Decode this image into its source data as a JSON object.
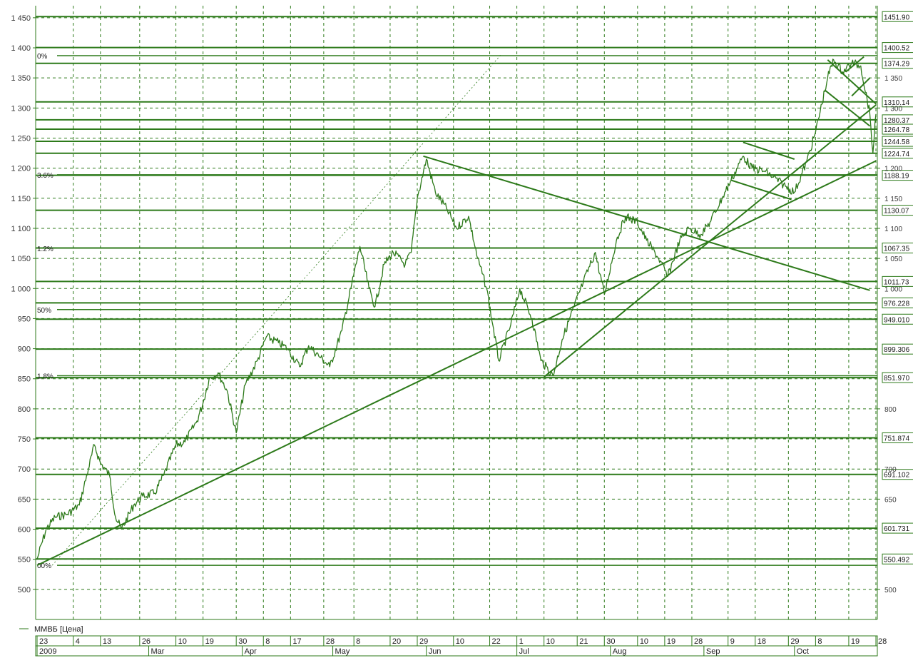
{
  "colors": {
    "series": "#2d7a1a",
    "grid": "#2d7a1a",
    "background": "#ffffff"
  },
  "legend": {
    "label": "ММВБ [Цена]"
  },
  "chart_data": {
    "type": "line",
    "ylim": [
      450,
      1470
    ],
    "x_range": [
      "2009-01-23",
      "2009-10-28"
    ],
    "y_ticks": [
      500,
      550,
      600,
      650,
      700,
      750,
      800,
      850,
      900,
      950,
      1000,
      1050,
      1100,
      1150,
      1200,
      1250,
      1300,
      1350,
      1400,
      1450
    ],
    "y_tick_labels": [
      "500",
      "550",
      "600",
      "650",
      "700",
      "750",
      "800",
      "850",
      "900",
      "950",
      "1 000",
      "1 050",
      "1 100",
      "1 150",
      "1 200",
      "1 250",
      "1 300",
      "1 350",
      "1 400",
      "1 450"
    ],
    "right_ticks": [
      500,
      650,
      700,
      800,
      1000,
      1050,
      1100,
      1150,
      1200,
      1300,
      1350
    ],
    "right_tick_labels": [
      "500",
      "650",
      "700",
      "800",
      "1 000",
      "1 050",
      "1 100",
      "1 150",
      "1 200",
      "1 300",
      "1 350"
    ],
    "grid": true,
    "x_day_ticks": [
      {
        "date": "2009-01-23",
        "label": "23"
      },
      {
        "date": "2009-02-04",
        "label": "4"
      },
      {
        "date": "2009-02-13",
        "label": "13"
      },
      {
        "date": "2009-02-26",
        "label": "26"
      },
      {
        "date": "2009-03-10",
        "label": "10"
      },
      {
        "date": "2009-03-19",
        "label": "19"
      },
      {
        "date": "2009-03-30",
        "label": "30"
      },
      {
        "date": "2009-04-08",
        "label": "8"
      },
      {
        "date": "2009-04-17",
        "label": "17"
      },
      {
        "date": "2009-04-28",
        "label": "28"
      },
      {
        "date": "2009-05-08",
        "label": "8"
      },
      {
        "date": "2009-05-20",
        "label": "20"
      },
      {
        "date": "2009-05-29",
        "label": "29"
      },
      {
        "date": "2009-06-10",
        "label": "10"
      },
      {
        "date": "2009-06-22",
        "label": "22"
      },
      {
        "date": "2009-07-01",
        "label": "1"
      },
      {
        "date": "2009-07-10",
        "label": "10"
      },
      {
        "date": "2009-07-21",
        "label": "21"
      },
      {
        "date": "2009-07-30",
        "label": "30"
      },
      {
        "date": "2009-08-10",
        "label": "10"
      },
      {
        "date": "2009-08-19",
        "label": "19"
      },
      {
        "date": "2009-08-28",
        "label": "28"
      },
      {
        "date": "2009-09-09",
        "label": "9"
      },
      {
        "date": "2009-09-18",
        "label": "18"
      },
      {
        "date": "2009-09-29",
        "label": "29"
      },
      {
        "date": "2009-10-08",
        "label": "8"
      },
      {
        "date": "2009-10-19",
        "label": "19"
      },
      {
        "date": "2009-10-28",
        "label": "28"
      }
    ],
    "x_month_labels": [
      {
        "date": "2009-01-23",
        "label": "2009"
      },
      {
        "date": "2009-03-01",
        "label": "Mar"
      },
      {
        "date": "2009-04-01",
        "label": "Apr"
      },
      {
        "date": "2009-05-01",
        "label": "May"
      },
      {
        "date": "2009-06-01",
        "label": "Jun"
      },
      {
        "date": "2009-07-01",
        "label": "Jul"
      },
      {
        "date": "2009-08-01",
        "label": "Aug"
      },
      {
        "date": "2009-09-01",
        "label": "Sep"
      },
      {
        "date": "2009-10-01",
        "label": "Oct"
      }
    ],
    "series": [
      {
        "name": "ММВБ [Цена]",
        "points": [
          [
            "2009-01-23",
            550
          ],
          [
            "2009-01-26",
            600
          ],
          [
            "2009-01-29",
            620
          ],
          [
            "2009-02-02",
            625
          ],
          [
            "2009-02-06",
            640
          ],
          [
            "2009-02-09",
            700
          ],
          [
            "2009-02-11",
            740
          ],
          [
            "2009-02-13",
            710
          ],
          [
            "2009-02-16",
            690
          ],
          [
            "2009-02-18",
            620
          ],
          [
            "2009-02-20",
            600
          ],
          [
            "2009-02-24",
            640
          ],
          [
            "2009-02-27",
            655
          ],
          [
            "2009-03-03",
            660
          ],
          [
            "2009-03-06",
            690
          ],
          [
            "2009-03-10",
            740
          ],
          [
            "2009-03-13",
            745
          ],
          [
            "2009-03-17",
            780
          ],
          [
            "2009-03-19",
            810
          ],
          [
            "2009-03-21",
            850
          ],
          [
            "2009-03-24",
            860
          ],
          [
            "2009-03-27",
            830
          ],
          [
            "2009-03-30",
            760
          ],
          [
            "2009-04-02",
            840
          ],
          [
            "2009-04-06",
            880
          ],
          [
            "2009-04-09",
            920
          ],
          [
            "2009-04-13",
            910
          ],
          [
            "2009-04-16",
            900
          ],
          [
            "2009-04-20",
            870
          ],
          [
            "2009-04-23",
            905
          ],
          [
            "2009-04-27",
            885
          ],
          [
            "2009-04-30",
            870
          ],
          [
            "2009-05-04",
            930
          ],
          [
            "2009-05-07",
            1000
          ],
          [
            "2009-05-10",
            1070
          ],
          [
            "2009-05-13",
            1000
          ],
          [
            "2009-05-15",
            970
          ],
          [
            "2009-05-18",
            1040
          ],
          [
            "2009-05-21",
            1060
          ],
          [
            "2009-05-25",
            1040
          ],
          [
            "2009-05-27",
            1060
          ],
          [
            "2009-05-29",
            1150
          ],
          [
            "2009-06-01",
            1215
          ],
          [
            "2009-06-04",
            1160
          ],
          [
            "2009-06-08",
            1130
          ],
          [
            "2009-06-11",
            1100
          ],
          [
            "2009-06-15",
            1120
          ],
          [
            "2009-06-18",
            1050
          ],
          [
            "2009-06-21",
            1000
          ],
          [
            "2009-06-23",
            940
          ],
          [
            "2009-06-25",
            880
          ],
          [
            "2009-06-29",
            940
          ],
          [
            "2009-07-02",
            1000
          ],
          [
            "2009-07-06",
            950
          ],
          [
            "2009-07-09",
            880
          ],
          [
            "2009-07-13",
            855
          ],
          [
            "2009-07-16",
            915
          ],
          [
            "2009-07-20",
            970
          ],
          [
            "2009-07-23",
            1010
          ],
          [
            "2009-07-27",
            1060
          ],
          [
            "2009-07-30",
            990
          ],
          [
            "2009-08-03",
            1080
          ],
          [
            "2009-08-06",
            1120
          ],
          [
            "2009-08-10",
            1110
          ],
          [
            "2009-08-13",
            1080
          ],
          [
            "2009-08-17",
            1050
          ],
          [
            "2009-08-20",
            1020
          ],
          [
            "2009-08-24",
            1080
          ],
          [
            "2009-08-27",
            1100
          ],
          [
            "2009-08-31",
            1090
          ],
          [
            "2009-09-03",
            1110
          ],
          [
            "2009-09-07",
            1150
          ],
          [
            "2009-09-10",
            1180
          ],
          [
            "2009-09-14",
            1220
          ],
          [
            "2009-09-17",
            1200
          ],
          [
            "2009-09-21",
            1195
          ],
          [
            "2009-09-24",
            1185
          ],
          [
            "2009-09-28",
            1170
          ],
          [
            "2009-10-01",
            1160
          ],
          [
            "2009-10-05",
            1210
          ],
          [
            "2009-10-08",
            1260
          ],
          [
            "2009-10-12",
            1350
          ],
          [
            "2009-10-14",
            1380
          ],
          [
            "2009-10-17",
            1360
          ],
          [
            "2009-10-20",
            1375
          ],
          [
            "2009-10-23",
            1370
          ],
          [
            "2009-10-26",
            1290
          ],
          [
            "2009-10-27",
            1225
          ],
          [
            "2009-10-28",
            1290
          ]
        ]
      }
    ],
    "levels": [
      {
        "value": 1451.9,
        "label": "1451.90"
      },
      {
        "value": 1400.52,
        "label": "1400.52"
      },
      {
        "value": 1374.29,
        "label": "1374.29"
      },
      {
        "value": 1310.14,
        "label": "1310.14"
      },
      {
        "value": 1280.37,
        "label": "1280.37"
      },
      {
        "value": 1264.78,
        "label": "1264.78"
      },
      {
        "value": 1244.58,
        "label": "1244.58"
      },
      {
        "value": 1224.74,
        "label": "1224.74"
      },
      {
        "value": 1188.19,
        "label": "1188.19"
      },
      {
        "value": 1130.07,
        "label": "1130.07"
      },
      {
        "value": 1067.35,
        "label": "1067.35"
      },
      {
        "value": 1011.73,
        "label": "1011.73"
      },
      {
        "value": 976.228,
        "label": "976.228"
      },
      {
        "value": 949.01,
        "label": "949.010"
      },
      {
        "value": 899.306,
        "label": "899.306"
      },
      {
        "value": 851.97,
        "label": "851.970"
      },
      {
        "value": 751.874,
        "label": "751.874"
      },
      {
        "value": 691.102,
        "label": "691.102"
      },
      {
        "value": 601.731,
        "label": "601.731"
      },
      {
        "value": 550.492,
        "label": "550.492"
      }
    ],
    "fib_levels": [
      {
        "value": 1387,
        "label": "0%"
      },
      {
        "value": 1189,
        "label": "3.6%"
      },
      {
        "value": 1067,
        "label": "1.2%"
      },
      {
        "value": 965,
        "label": "50%"
      },
      {
        "value": 855,
        "label": "1.8%"
      },
      {
        "value": 540,
        "label": "00%"
      }
    ],
    "trendlines": [
      {
        "x1": "2009-01-23",
        "y1": 540,
        "x2": "2009-10-28",
        "y2": 1212
      },
      {
        "x1": "2009-05-31",
        "y1": 1220,
        "x2": "2009-10-26",
        "y2": 997
      },
      {
        "x1": "2009-07-10",
        "y1": 853,
        "x2": "2009-10-28",
        "y2": 1305
      },
      {
        "x1": "2009-09-14",
        "y1": 1243,
        "x2": "2009-10-01",
        "y2": 1215
      },
      {
        "x1": "2009-09-10",
        "y1": 1180,
        "x2": "2009-09-30",
        "y2": 1148
      },
      {
        "x1": "2009-10-12",
        "y1": 1380,
        "x2": "2009-10-28",
        "y2": 1307
      },
      {
        "x1": "2009-10-11",
        "y1": 1330,
        "x2": "2009-10-26",
        "y2": 1270
      },
      {
        "x1": "2009-10-20",
        "y1": 1320,
        "x2": "2009-10-26",
        "y2": 1350
      },
      {
        "x1": "2009-10-18",
        "y1": 1360,
        "x2": "2009-10-24",
        "y2": 1385
      }
    ],
    "dotted_line": {
      "x1": "2009-01-28",
      "y1": 540,
      "x2": "2009-06-26",
      "y2": 1390
    }
  }
}
